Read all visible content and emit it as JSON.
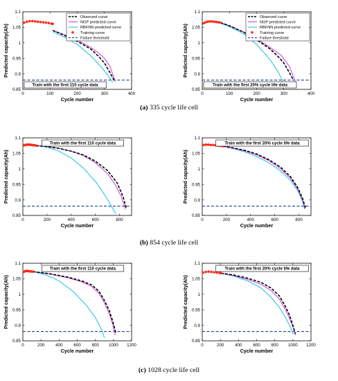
{
  "colors": {
    "observed": "#000000",
    "ngp": "#c84bd8",
    "rbfnn": "#2ec4e6",
    "training": "#ff2a1a",
    "threshold": "#1f3d99"
  },
  "legend": {
    "observed": "Observed curve",
    "ngp": "NGP predicted curve",
    "rbfnn": "RBFNN predicted curve",
    "training": "Training curve",
    "threshold": "Failure threshold"
  },
  "rows": [
    {
      "label": "(a)",
      "text": " 335 cycle life cell"
    },
    {
      "label": "(b)",
      "text": " 854 cycle life cell"
    },
    {
      "label": "(c)",
      "text": " 1028 cycle life cell"
    }
  ],
  "chart_data": [
    {
      "type": "line",
      "row": 0,
      "col": 0,
      "xlabel": "Cycle number",
      "ylabel": "Predicted capacity(Ah)",
      "xlim": [
        0,
        400
      ],
      "ylim": [
        0.85,
        1.1
      ],
      "xticks": [
        "0",
        "100",
        "200",
        "300",
        "400"
      ],
      "yticks": [
        "0.85",
        "0.9",
        "0.95",
        "1",
        "1.05",
        "1.1"
      ],
      "legend": true,
      "legend_position": "top-right",
      "annotation": "Train with the first 110 cycle data",
      "annotation_position": "bottom-left",
      "threshold": 0.88,
      "series": [
        {
          "key": "observed",
          "x": [
            110,
            150,
            200,
            250,
            280,
            300,
            320,
            335
          ],
          "y": [
            1.04,
            1.025,
            1.005,
            0.98,
            0.955,
            0.935,
            0.905,
            0.88
          ]
        },
        {
          "key": "ngp",
          "x": [
            110,
            150,
            200,
            250,
            280,
            300,
            320,
            340
          ],
          "y": [
            1.04,
            1.027,
            1.009,
            0.985,
            0.966,
            0.95,
            0.925,
            0.875
          ]
        },
        {
          "key": "rbfnn",
          "x": [
            110,
            150,
            200,
            250,
            290,
            320,
            330
          ],
          "y": [
            1.035,
            1.02,
            0.995,
            0.958,
            0.92,
            0.887,
            0.872
          ]
        },
        {
          "key": "training",
          "x": [
            5,
            15,
            25,
            35,
            45,
            55,
            65,
            75,
            85,
            95,
            105,
            110
          ],
          "y": [
            1.065,
            1.068,
            1.07,
            1.07,
            1.069,
            1.068,
            1.067,
            1.066,
            1.065,
            1.064,
            1.062,
            1.061
          ]
        }
      ]
    },
    {
      "type": "line",
      "row": 0,
      "col": 1,
      "xlabel": "Cycle number",
      "ylabel": "Predicted capacity(Ah)",
      "xlim": [
        0,
        400
      ],
      "ylim": [
        0.85,
        1.1
      ],
      "xticks": [
        "0",
        "100",
        "200",
        "300",
        "400"
      ],
      "yticks": [
        "0.85",
        "0.9",
        "0.95",
        "1",
        "1.05",
        "1.1"
      ],
      "legend": true,
      "legend_position": "top-right",
      "annotation": "Train with the first 20% cycle life data",
      "annotation_position": "bottom-left",
      "threshold": 0.88,
      "series": [
        {
          "key": "observed",
          "x": [
            67,
            100,
            150,
            200,
            250,
            280,
            300,
            320,
            335
          ],
          "y": [
            1.065,
            1.055,
            1.035,
            1.01,
            0.98,
            0.955,
            0.935,
            0.905,
            0.88
          ]
        },
        {
          "key": "ngp",
          "x": [
            67,
            100,
            150,
            200,
            250,
            290,
            320,
            345
          ],
          "y": [
            1.065,
            1.055,
            1.036,
            1.013,
            0.985,
            0.96,
            0.925,
            0.87
          ]
        },
        {
          "key": "rbfnn",
          "x": [
            67,
            100,
            150,
            200,
            250,
            280,
            305
          ],
          "y": [
            1.063,
            1.052,
            1.03,
            0.995,
            0.945,
            0.905,
            0.86
          ]
        },
        {
          "key": "training",
          "x": [
            5,
            12,
            20,
            28,
            36,
            44,
            52,
            60,
            67
          ],
          "y": [
            1.063,
            1.066,
            1.068,
            1.069,
            1.069,
            1.068,
            1.067,
            1.066,
            1.065
          ]
        }
      ]
    },
    {
      "type": "line",
      "row": 1,
      "col": 0,
      "xlabel": "Cycle number",
      "ylabel": "Predicted capacity(Ah)",
      "xlim": [
        0,
        900
      ],
      "ylim": [
        0.85,
        1.1
      ],
      "xticks": [
        "0",
        "200",
        "400",
        "600",
        "800"
      ],
      "yticks": [
        "0.85",
        "0.9",
        "0.95",
        "1",
        "1.05",
        "1.1"
      ],
      "legend": false,
      "annotation": "Train with the first 110 cycle data",
      "annotation_position": "top-center",
      "threshold": 0.88,
      "series": [
        {
          "key": "observed",
          "x": [
            110,
            200,
            300,
            400,
            500,
            600,
            700,
            780,
            830,
            854
          ],
          "y": [
            1.075,
            1.072,
            1.066,
            1.057,
            1.045,
            1.025,
            0.995,
            0.955,
            0.91,
            0.875
          ]
        },
        {
          "key": "ngp",
          "x": [
            110,
            200,
            300,
            400,
            500,
            600,
            700,
            760,
            810,
            850
          ],
          "y": [
            1.075,
            1.072,
            1.066,
            1.057,
            1.043,
            1.02,
            0.985,
            0.952,
            0.915,
            0.87
          ]
        },
        {
          "key": "rbfnn",
          "x": [
            110,
            200,
            300,
            400,
            500,
            600,
            680,
            740,
            770
          ],
          "y": [
            1.075,
            1.07,
            1.057,
            1.035,
            1.003,
            0.96,
            0.915,
            0.875,
            0.855
          ]
        },
        {
          "key": "training",
          "x": [
            10,
            20,
            30,
            40,
            50,
            60,
            70,
            80,
            90,
            100,
            110
          ],
          "y": [
            1.076,
            1.077,
            1.078,
            1.078,
            1.078,
            1.078,
            1.077,
            1.077,
            1.076,
            1.076,
            1.075
          ]
        }
      ]
    },
    {
      "type": "line",
      "row": 1,
      "col": 1,
      "xlabel": "Cycle number",
      "ylabel": "Predicted capacity(Ah)",
      "xlim": [
        0,
        900
      ],
      "ylim": [
        0.85,
        1.1
      ],
      "xticks": [
        "0",
        "200",
        "400",
        "600",
        "800"
      ],
      "yticks": [
        "0.85",
        "0.9",
        "0.95",
        "1",
        "1.05",
        "1.1"
      ],
      "legend": false,
      "annotation": "Train with the first 20% cycle life data",
      "annotation_position": "top-center",
      "threshold": 0.88,
      "series": [
        {
          "key": "observed",
          "x": [
            171,
            250,
            350,
            450,
            550,
            650,
            730,
            790,
            830,
            854
          ],
          "y": [
            1.073,
            1.068,
            1.06,
            1.048,
            1.03,
            1.005,
            0.975,
            0.94,
            0.905,
            0.875
          ]
        },
        {
          "key": "ngp",
          "x": [
            171,
            250,
            350,
            450,
            550,
            650,
            730,
            790,
            830,
            850
          ],
          "y": [
            1.073,
            1.067,
            1.058,
            1.045,
            1.027,
            1.0,
            0.97,
            0.935,
            0.9,
            0.872
          ]
        },
        {
          "key": "rbfnn",
          "x": [
            171,
            250,
            350,
            450,
            550,
            650,
            730,
            790,
            830,
            848
          ],
          "y": [
            1.073,
            1.066,
            1.055,
            1.04,
            1.02,
            0.993,
            0.963,
            0.93,
            0.895,
            0.87
          ]
        },
        {
          "key": "training",
          "x": [
            10,
            30,
            50,
            70,
            90,
            110,
            130,
            150,
            171
          ],
          "y": [
            1.077,
            1.078,
            1.078,
            1.077,
            1.077,
            1.076,
            1.075,
            1.074,
            1.073
          ]
        }
      ]
    },
    {
      "type": "line",
      "row": 2,
      "col": 0,
      "xlabel": "Cycle number",
      "ylabel": "Predicted capacity(Ah)",
      "xlim": [
        0,
        1200
      ],
      "ylim": [
        0.85,
        1.1
      ],
      "xticks": [
        "0",
        "200",
        "400",
        "600",
        "800",
        "1000",
        "1200"
      ],
      "yticks": [
        "0.85",
        "0.9",
        "0.95",
        "1",
        "1.05",
        "1.1"
      ],
      "legend": false,
      "annotation": "Train with the first 110 cycle data",
      "annotation_position": "top-center",
      "threshold": 0.88,
      "series": [
        {
          "key": "observed",
          "x": [
            110,
            300,
            500,
            650,
            760,
            840,
            900,
            950,
            990,
            1028
          ],
          "y": [
            1.073,
            1.066,
            1.055,
            1.043,
            1.03,
            1.01,
            0.98,
            0.95,
            0.915,
            0.873
          ]
        },
        {
          "key": "ngp",
          "x": [
            110,
            300,
            500,
            650,
            760,
            840,
            900,
            950,
            990,
            1020
          ],
          "y": [
            1.073,
            1.065,
            1.053,
            1.04,
            1.025,
            1.003,
            0.972,
            0.94,
            0.905,
            0.868
          ]
        },
        {
          "key": "rbfnn",
          "x": [
            110,
            250,
            400,
            550,
            700,
            800,
            870,
            900
          ],
          "y": [
            1.073,
            1.063,
            1.043,
            1.01,
            0.965,
            0.925,
            0.885,
            0.86
          ]
        },
        {
          "key": "training",
          "x": [
            10,
            20,
            30,
            40,
            50,
            60,
            70,
            80,
            90,
            100,
            110
          ],
          "y": [
            1.072,
            1.074,
            1.075,
            1.075,
            1.075,
            1.075,
            1.074,
            1.074,
            1.074,
            1.073,
            1.073
          ]
        }
      ]
    },
    {
      "type": "line",
      "row": 2,
      "col": 1,
      "xlabel": "Cycle number",
      "ylabel": "Predicted capacity(Ah)",
      "xlim": [
        0,
        1200
      ],
      "ylim": [
        0.85,
        1.1
      ],
      "xticks": [
        "0",
        "200",
        "400",
        "600",
        "800",
        "1000",
        "1200"
      ],
      "yticks": [
        "0.85",
        "0.9",
        "0.95",
        "1",
        "1.05",
        "1.1"
      ],
      "legend": false,
      "annotation": "Train with the first 20% cycle life data",
      "annotation_position": "top-center",
      "threshold": 0.88,
      "series": [
        {
          "key": "observed",
          "x": [
            206,
            350,
            500,
            650,
            760,
            850,
            910,
            960,
            1000,
            1028
          ],
          "y": [
            1.068,
            1.062,
            1.052,
            1.038,
            1.02,
            0.995,
            0.965,
            0.935,
            0.9,
            0.873
          ]
        },
        {
          "key": "ngp",
          "x": [
            206,
            350,
            500,
            650,
            760,
            850,
            910,
            960,
            1000,
            1030
          ],
          "y": [
            1.068,
            1.06,
            1.048,
            1.032,
            1.012,
            0.985,
            0.955,
            0.925,
            0.895,
            0.868
          ]
        },
        {
          "key": "rbfnn",
          "x": [
            206,
            350,
            500,
            650,
            760,
            850,
            920,
            970,
            1010
          ],
          "y": [
            1.068,
            1.058,
            1.043,
            1.02,
            0.99,
            0.958,
            0.925,
            0.895,
            0.87
          ]
        },
        {
          "key": "training",
          "x": [
            10,
            40,
            70,
            100,
            130,
            160,
            190,
            206
          ],
          "y": [
            1.07,
            1.072,
            1.073,
            1.072,
            1.071,
            1.07,
            1.069,
            1.068
          ]
        }
      ]
    }
  ]
}
